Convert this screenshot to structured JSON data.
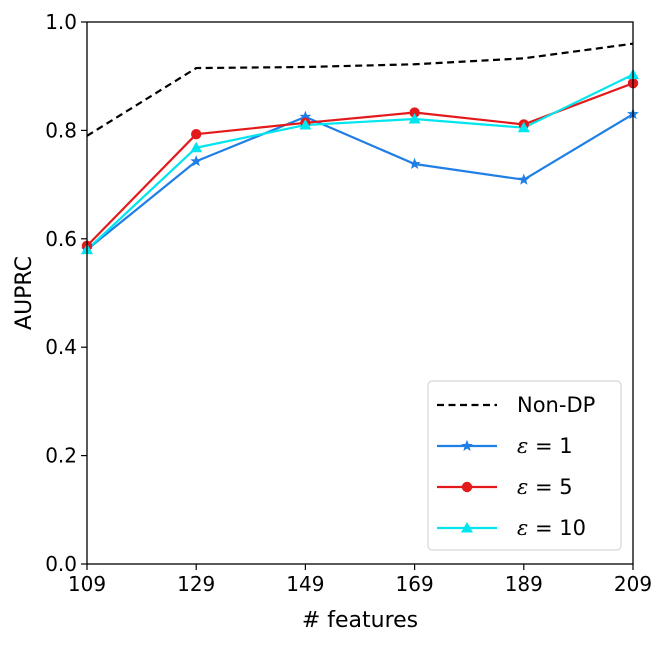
{
  "chart_data": {
    "type": "line",
    "title": "",
    "xlabel": "# features",
    "ylabel": "AUPRC",
    "x": [
      109,
      129,
      149,
      169,
      189,
      209
    ],
    "xlim": [
      109,
      209
    ],
    "ylim": [
      0.0,
      1.0
    ],
    "xticks": [
      "109",
      "129",
      "149",
      "169",
      "189",
      "209"
    ],
    "yticks": [
      "0.0",
      "0.2",
      "0.4",
      "0.6",
      "0.8",
      "1.0"
    ],
    "grid": false,
    "legend_position": "bottom-right",
    "series": [
      {
        "name": "Non-DP",
        "eps": "",
        "color": "#000000",
        "style": "dashed",
        "marker": "none",
        "values": [
          0.79,
          0.915,
          0.917,
          0.922,
          0.933,
          0.96
        ]
      },
      {
        "name": "ε = 1",
        "eps": "1",
        "color": "#1f7fe6",
        "style": "solid",
        "marker": "star",
        "values": [
          0.58,
          0.743,
          0.825,
          0.738,
          0.709,
          0.83
        ]
      },
      {
        "name": "ε = 5",
        "eps": "5",
        "color": "#e31a1c",
        "style": "solid",
        "marker": "circle",
        "values": [
          0.587,
          0.793,
          0.814,
          0.833,
          0.811,
          0.887
        ]
      },
      {
        "name": "ε = 10",
        "eps": "10",
        "color": "#00e5ee",
        "style": "solid",
        "marker": "triangle",
        "values": [
          0.58,
          0.768,
          0.81,
          0.821,
          0.805,
          0.903
        ]
      }
    ]
  }
}
